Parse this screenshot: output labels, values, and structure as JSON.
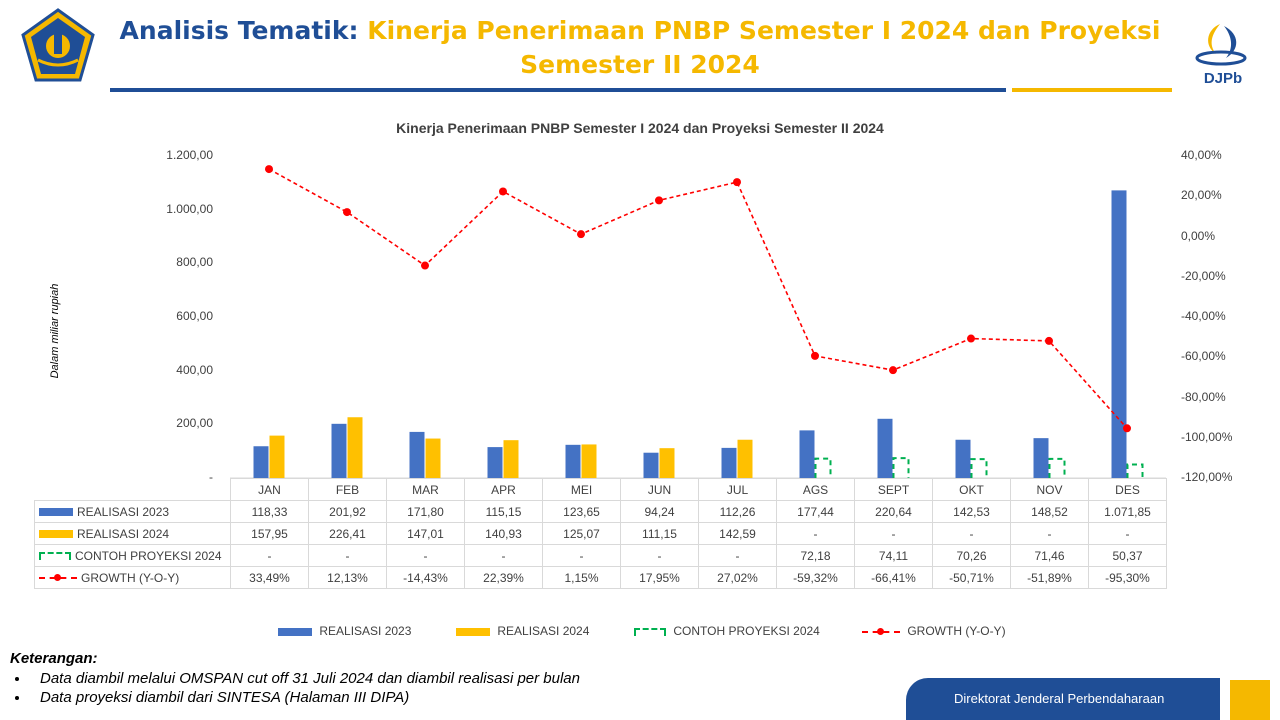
{
  "header": {
    "title_prefix": "Analisis Tematik:",
    "title_main": "Kinerja Penerimaan PNBP Semester I 2024 dan Proyeksi Semester II 2024",
    "brand": "DJPb"
  },
  "chart_data": {
    "type": "bar",
    "title": "Kinerja Penerimaan PNBP Semester I 2024 dan Proyeksi Semester II 2024",
    "ylabel": "Dalam miliar rupiah",
    "ylim": [
      0,
      1200
    ],
    "y2lim": [
      -120,
      40
    ],
    "y_ticks": [
      "1.200,00",
      "1.000,00",
      "800,00",
      "600,00",
      "400,00",
      "200,00",
      "-"
    ],
    "y2_ticks": [
      "40,00%",
      "20,00%",
      "0,00%",
      "-20,00%",
      "-40,00%",
      "-60,00%",
      "-80,00%",
      "-100,00%",
      "-120,00%"
    ],
    "categories": [
      "JAN",
      "FEB",
      "MAR",
      "APR",
      "MEI",
      "JUN",
      "JUL",
      "AGS",
      "SEPT",
      "OKT",
      "NOV",
      "DES"
    ],
    "series": [
      {
        "name": "REALISASI 2023",
        "type": "bar",
        "color": "#4472c4",
        "values": [
          118.33,
          201.92,
          171.8,
          115.15,
          123.65,
          94.24,
          112.26,
          177.44,
          220.64,
          142.53,
          148.52,
          1071.85
        ],
        "labels": [
          "118,33",
          "201,92",
          "171,80",
          "115,15",
          "123,65",
          "94,24",
          "112,26",
          "177,44",
          "220,64",
          "142,53",
          "148,52",
          "1.071,85"
        ]
      },
      {
        "name": "REALISASI 2024",
        "type": "bar",
        "color": "#ffc000",
        "values": [
          157.95,
          226.41,
          147.01,
          140.93,
          125.07,
          111.15,
          142.59,
          null,
          null,
          null,
          null,
          null
        ],
        "labels": [
          "157,95",
          "226,41",
          "147,01",
          "140,93",
          "125,07",
          "111,15",
          "142,59",
          "-",
          "-",
          "-",
          "-",
          "-"
        ]
      },
      {
        "name": "CONTOH PROYEKSI 2024",
        "type": "bar-dashed",
        "color": "#00b050",
        "values": [
          null,
          null,
          null,
          null,
          null,
          null,
          null,
          72.18,
          74.11,
          70.26,
          71.46,
          50.37
        ],
        "labels": [
          "-",
          "-",
          "-",
          "-",
          "-",
          "-",
          "-",
          "72,18",
          "74,11",
          "70,26",
          "71,46",
          "50,37"
        ]
      },
      {
        "name": "GROWTH (Y-O-Y)",
        "type": "line",
        "axis": "right",
        "color": "#ff0000",
        "values": [
          33.49,
          12.13,
          -14.43,
          22.39,
          1.15,
          17.95,
          27.02,
          -59.32,
          -66.41,
          -50.71,
          -51.89,
          -95.3
        ],
        "labels": [
          "33,49%",
          "12,13%",
          "-14,43%",
          "22,39%",
          "1,15%",
          "17,95%",
          "27,02%",
          "-59,32%",
          "-66,41%",
          "-50,71%",
          "-51,89%",
          "-95,30%"
        ]
      }
    ],
    "legend_position": "bottom"
  },
  "notes": {
    "heading": "Keterangan:",
    "items": [
      "Data diambil melalui OMSPAN cut off 31 Juli 2024 dan diambil realisasi per bulan",
      "Data proyeksi diambil dari SINTESA (Halaman III DIPA)"
    ]
  },
  "footer": {
    "text": "Direktorat Jenderal Perbendaharaan"
  }
}
